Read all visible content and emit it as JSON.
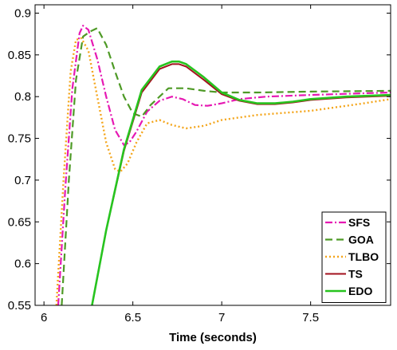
{
  "chart_data": {
    "type": "line",
    "title": "",
    "xlabel": "Time (seconds)",
    "ylabel": "",
    "xlim": [
      5.95,
      7.95
    ],
    "ylim": [
      0.55,
      0.91
    ],
    "xticks": [
      6,
      6.5,
      7,
      7.5
    ],
    "xtick_labels": [
      "6",
      "6.5",
      "7",
      "7.5"
    ],
    "yticks": [
      0.55,
      0.6,
      0.65,
      0.7,
      0.75,
      0.8,
      0.85,
      0.9
    ],
    "ytick_labels": [
      "0.55",
      "0.6",
      "0.65",
      "0.7",
      "0.75",
      "0.8",
      "0.85",
      "0.9"
    ],
    "grid": false,
    "legend_position": "bottom-right",
    "series": [
      {
        "name": "SFS",
        "color": "#e619b3",
        "dash": "9,3,2,3",
        "width": 2.2,
        "x": [
          6.08,
          6.12,
          6.16,
          6.2,
          6.22,
          6.25,
          6.3,
          6.35,
          6.4,
          6.45,
          6.48,
          6.52,
          6.58,
          6.65,
          6.72,
          6.78,
          6.85,
          6.92,
          7.0,
          7.1,
          7.25,
          7.5,
          7.8,
          7.95
        ],
        "y": [
          0.55,
          0.69,
          0.81,
          0.876,
          0.885,
          0.88,
          0.845,
          0.8,
          0.76,
          0.742,
          0.745,
          0.758,
          0.782,
          0.795,
          0.8,
          0.797,
          0.79,
          0.789,
          0.792,
          0.797,
          0.8,
          0.802,
          0.804,
          0.805
        ]
      },
      {
        "name": "GOA",
        "color": "#4e9a26",
        "dash": "9,5",
        "width": 2.2,
        "x": [
          6.1,
          6.14,
          6.18,
          6.22,
          6.26,
          6.3,
          6.35,
          6.4,
          6.45,
          6.5,
          6.55,
          6.6,
          6.7,
          6.8,
          6.9,
          7.0,
          7.2,
          7.5,
          7.95
        ],
        "y": [
          0.55,
          0.7,
          0.82,
          0.872,
          0.878,
          0.882,
          0.862,
          0.83,
          0.8,
          0.78,
          0.776,
          0.79,
          0.81,
          0.81,
          0.807,
          0.805,
          0.805,
          0.806,
          0.807
        ]
      },
      {
        "name": "TLBO",
        "color": "#f4a51a",
        "dash": "2,3",
        "width": 2.4,
        "x": [
          6.07,
          6.11,
          6.15,
          6.18,
          6.21,
          6.25,
          6.3,
          6.35,
          6.4,
          6.43,
          6.47,
          6.52,
          6.58,
          6.65,
          6.72,
          6.8,
          6.9,
          7.0,
          7.2,
          7.5,
          7.8,
          7.95
        ],
        "y": [
          0.55,
          0.7,
          0.83,
          0.868,
          0.87,
          0.855,
          0.8,
          0.745,
          0.713,
          0.71,
          0.72,
          0.745,
          0.768,
          0.772,
          0.766,
          0.762,
          0.765,
          0.772,
          0.778,
          0.783,
          0.792,
          0.797
        ]
      },
      {
        "name": "TS",
        "color": "#a3121e",
        "dash": "",
        "width": 2.0,
        "x": [
          6.27,
          6.35,
          6.45,
          6.55,
          6.65,
          6.72,
          6.76,
          6.8,
          6.9,
          7.0,
          7.1,
          7.2,
          7.3,
          7.4,
          7.5,
          7.7,
          7.95
        ],
        "y": [
          0.55,
          0.64,
          0.735,
          0.805,
          0.833,
          0.839,
          0.839,
          0.836,
          0.82,
          0.803,
          0.795,
          0.791,
          0.791,
          0.793,
          0.796,
          0.799,
          0.801
        ]
      },
      {
        "name": "EDO",
        "color": "#27c41f",
        "dash": "",
        "width": 2.6,
        "x": [
          6.27,
          6.35,
          6.45,
          6.55,
          6.65,
          6.72,
          6.76,
          6.8,
          6.9,
          7.0,
          7.1,
          7.2,
          7.3,
          7.4,
          7.5,
          7.7,
          7.95
        ],
        "y": [
          0.55,
          0.64,
          0.737,
          0.808,
          0.836,
          0.842,
          0.842,
          0.839,
          0.823,
          0.805,
          0.796,
          0.792,
          0.792,
          0.794,
          0.797,
          0.8,
          0.802
        ]
      }
    ]
  }
}
